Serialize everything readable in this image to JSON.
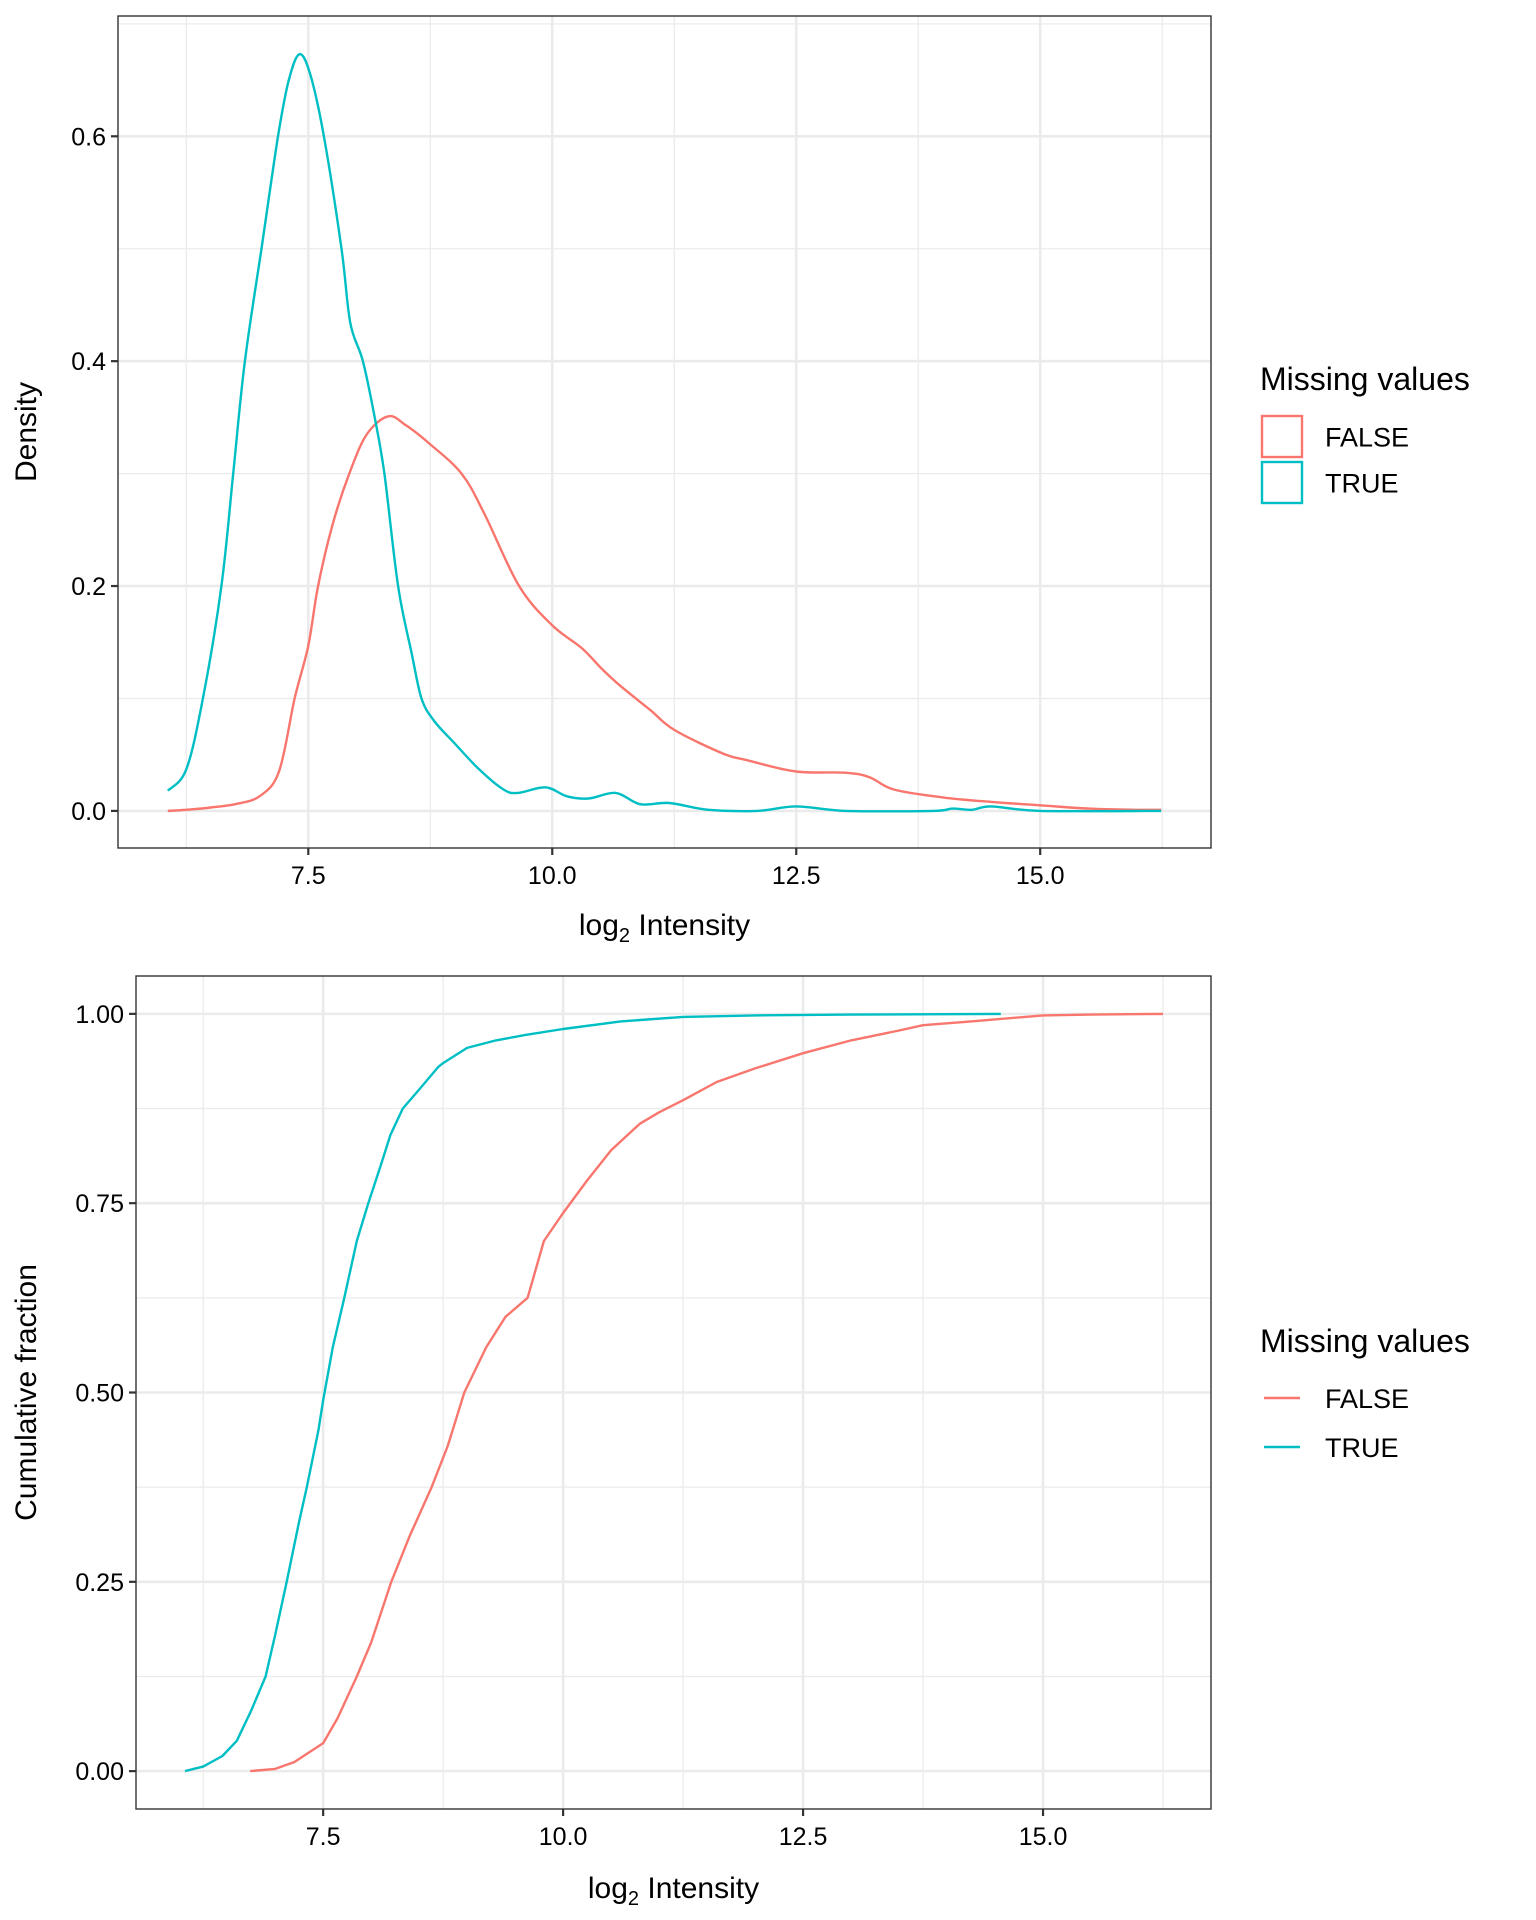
{
  "chart_data": [
    {
      "type": "line",
      "subtype": "density",
      "title": "",
      "xlabel": "log2 Intensity",
      "xlabel_parts": {
        "base": "log",
        "subscript": "2",
        "rest": " Intensity"
      },
      "ylabel": "Density",
      "xlim": [
        5.55,
        16.75
      ],
      "ylim": [
        -0.033,
        0.707
      ],
      "x_ticks": [
        7.5,
        10.0,
        12.5,
        15.0
      ],
      "x_tick_labels": [
        "7.5",
        "10.0",
        "12.5",
        "15.0"
      ],
      "x_minor": [
        6.25,
        8.75,
        11.25,
        13.75,
        16.25
      ],
      "y_ticks": [
        0.0,
        0.2,
        0.4,
        0.6
      ],
      "y_tick_labels": [
        "0.0",
        "0.2",
        "0.4",
        "0.6"
      ],
      "y_minor": [
        0.1,
        0.3,
        0.5,
        0.7
      ],
      "grid": true,
      "legend": {
        "title": "Missing values",
        "position": "right",
        "key_style": "box",
        "entries": [
          {
            "label": "FALSE",
            "color": "#F8766D"
          },
          {
            "label": "TRUE",
            "color": "#00BFC4"
          }
        ]
      },
      "series": [
        {
          "name": "FALSE",
          "color": "#F8766D",
          "x": [
            6.06,
            6.25,
            6.5,
            6.75,
            7.0,
            7.2,
            7.36,
            7.5,
            7.6,
            7.75,
            7.92,
            8.1,
            8.32,
            8.5,
            8.75,
            9.07,
            9.3,
            9.66,
            10.0,
            10.3,
            10.5,
            10.7,
            11.0,
            11.25,
            11.75,
            12.0,
            12.5,
            13.0,
            13.25,
            13.5,
            14.0,
            14.5,
            15.0,
            15.5,
            16.0,
            16.24
          ],
          "y": [
            0.0,
            0.001,
            0.003,
            0.006,
            0.013,
            0.035,
            0.1,
            0.147,
            0.2,
            0.255,
            0.3,
            0.335,
            0.351,
            0.343,
            0.326,
            0.3,
            0.265,
            0.2,
            0.165,
            0.145,
            0.127,
            0.111,
            0.09,
            0.072,
            0.051,
            0.045,
            0.035,
            0.034,
            0.03,
            0.019,
            0.012,
            0.008,
            0.005,
            0.002,
            0.001,
            0.001
          ]
        },
        {
          "name": "TRUE",
          "color": "#00BFC4",
          "x": [
            6.06,
            6.25,
            6.42,
            6.61,
            6.73,
            6.85,
            7.02,
            7.19,
            7.3,
            7.41,
            7.52,
            7.66,
            7.84,
            7.93,
            8.06,
            8.18,
            8.28,
            8.42,
            8.56,
            8.66,
            8.79,
            9.0,
            9.25,
            9.5,
            9.65,
            9.93,
            10.15,
            10.37,
            10.65,
            10.9,
            11.2,
            11.6,
            12.1,
            12.5,
            13.0,
            13.9,
            14.1,
            14.3,
            14.5,
            15.0,
            16.24
          ],
          "y": [
            0.018,
            0.037,
            0.1,
            0.2,
            0.3,
            0.4,
            0.5,
            0.6,
            0.65,
            0.673,
            0.655,
            0.6,
            0.5,
            0.434,
            0.4,
            0.35,
            0.3,
            0.2,
            0.14,
            0.1,
            0.08,
            0.06,
            0.037,
            0.019,
            0.016,
            0.021,
            0.013,
            0.011,
            0.016,
            0.006,
            0.007,
            0.001,
            0.0,
            0.004,
            0.0,
            0.0,
            0.002,
            0.001,
            0.004,
            0.0,
            0.0
          ]
        }
      ]
    },
    {
      "type": "line",
      "subtype": "ecdf",
      "title": "",
      "xlabel": "log2 Intensity",
      "xlabel_parts": {
        "base": "log",
        "subscript": "2",
        "rest": " Intensity"
      },
      "ylabel": "Cumulative fraction",
      "xlim": [
        5.55,
        16.75
      ],
      "ylim": [
        -0.05,
        1.05
      ],
      "x_ticks": [
        7.5,
        10.0,
        12.5,
        15.0
      ],
      "x_tick_labels": [
        "7.5",
        "10.0",
        "12.5",
        "15.0"
      ],
      "x_minor": [
        6.25,
        8.75,
        11.25,
        13.75,
        16.25
      ],
      "y_ticks": [
        0.0,
        0.25,
        0.5,
        0.75,
        1.0
      ],
      "y_tick_labels": [
        "0.00",
        "0.25",
        "0.50",
        "0.75",
        "1.00"
      ],
      "y_minor": [
        0.125,
        0.375,
        0.625,
        0.875
      ],
      "grid": true,
      "legend": {
        "title": "Missing values",
        "position": "right",
        "key_style": "line",
        "entries": [
          {
            "label": "FALSE",
            "color": "#F8766D"
          },
          {
            "label": "TRUE",
            "color": "#00BFC4"
          }
        ]
      },
      "series": [
        {
          "name": "FALSE",
          "color": "#F8766D",
          "x": [
            6.74,
            7.0,
            7.2,
            7.5,
            7.65,
            7.85,
            8.0,
            8.21,
            8.4,
            8.63,
            8.8,
            8.97,
            9.2,
            9.4,
            9.63,
            9.8,
            10.0,
            10.25,
            10.5,
            10.8,
            11.0,
            11.25,
            11.6,
            12.0,
            12.5,
            13.0,
            13.5,
            13.75,
            14.25,
            15.0,
            15.5,
            16.25
          ],
          "y": [
            0.0,
            0.003,
            0.012,
            0.037,
            0.07,
            0.125,
            0.17,
            0.25,
            0.31,
            0.375,
            0.43,
            0.5,
            0.56,
            0.6,
            0.625,
            0.7,
            0.737,
            0.78,
            0.82,
            0.855,
            0.87,
            0.886,
            0.91,
            0.928,
            0.948,
            0.965,
            0.978,
            0.985,
            0.99,
            0.998,
            0.999,
            1.0
          ]
        },
        {
          "name": "TRUE",
          "color": "#00BFC4",
          "x": [
            6.06,
            6.25,
            6.45,
            6.6,
            6.75,
            6.9,
            7.0,
            7.12,
            7.25,
            7.33,
            7.45,
            7.5,
            7.6,
            7.72,
            7.85,
            7.97,
            8.1,
            8.2,
            8.33,
            8.5,
            8.7,
            8.75,
            9.0,
            9.3,
            9.6,
            10.0,
            10.6,
            11.25,
            12.0,
            13.0,
            14.56
          ],
          "y": [
            0.0,
            0.006,
            0.02,
            0.04,
            0.08,
            0.125,
            0.18,
            0.25,
            0.33,
            0.375,
            0.45,
            0.49,
            0.56,
            0.625,
            0.7,
            0.75,
            0.8,
            0.84,
            0.875,
            0.9,
            0.93,
            0.935,
            0.955,
            0.965,
            0.972,
            0.98,
            0.99,
            0.996,
            0.998,
            0.999,
            1.0
          ]
        }
      ]
    }
  ]
}
